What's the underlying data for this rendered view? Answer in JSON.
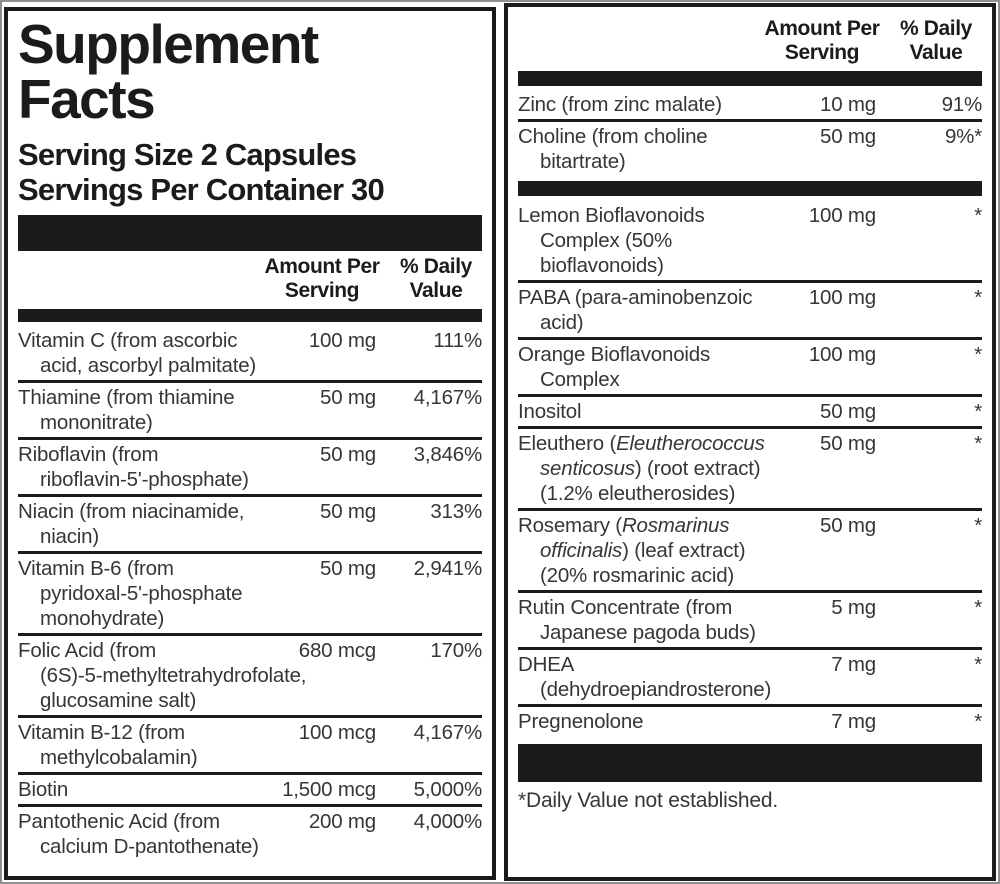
{
  "label": {
    "colors": {
      "ink": "#1c1b1a",
      "paper": "#ffffff",
      "row_text": "#383633"
    },
    "left": {
      "title": "Supplement\nFacts",
      "serving_size": "Serving Size 2 Capsules",
      "servings_per_container": "Servings Per Container 30",
      "columns": {
        "amount": "Amount Per\nServing",
        "daily_value": "% Daily\nValue"
      },
      "rows": [
        {
          "name_lines": [
            [
              "Vitamin C (from ascorbic"
            ],
            [
              "acid, ascorbyl palmitate)"
            ]
          ],
          "amount": "100 mg",
          "dv": "111%"
        },
        {
          "name_lines": [
            [
              "Thiamine (from thiamine"
            ],
            [
              "mononitrate)"
            ]
          ],
          "amount": "50 mg",
          "dv": "4,167%"
        },
        {
          "name_lines": [
            [
              "Riboflavin (from"
            ],
            [
              "riboflavin-5'-phosphate)"
            ]
          ],
          "amount": "50 mg",
          "dv": "3,846%"
        },
        {
          "name_lines": [
            [
              "Niacin (from niacinamide,"
            ],
            [
              "niacin)"
            ]
          ],
          "amount": "50 mg",
          "dv": "313%"
        },
        {
          "name_lines": [
            [
              "Vitamin B-6 (from"
            ],
            [
              "pyridoxal-5'-phosphate"
            ],
            [
              "monohydrate)"
            ]
          ],
          "amount": "50 mg",
          "dv": "2,941%"
        },
        {
          "name_lines": [
            [
              "Folic Acid (from"
            ],
            [
              "(6S)-5-methyltetrahydrofolate,"
            ],
            [
              "glucosamine salt)"
            ]
          ],
          "amount": "680 mcg",
          "dv": "170%"
        },
        {
          "name_lines": [
            [
              "Vitamin B-12 (from"
            ],
            [
              "methylcobalamin)"
            ]
          ],
          "amount": "100 mcg",
          "dv": "4,167%"
        },
        {
          "name_lines": [
            [
              "Biotin"
            ]
          ],
          "amount": "1,500 mcg",
          "dv": "5,000%"
        },
        {
          "name_lines": [
            [
              "Pantothenic Acid (from"
            ],
            [
              "calcium D-pantothenate)"
            ]
          ],
          "amount": "200 mg",
          "dv": "4,000%"
        }
      ]
    },
    "right": {
      "columns": {
        "amount": "Amount Per\nServing",
        "daily_value": "% Daily\nValue"
      },
      "rows": [
        {
          "name_lines": [
            [
              "Zinc (from zinc malate)"
            ]
          ],
          "amount": "10 mg",
          "dv": "91%"
        },
        {
          "name_lines": [
            [
              "Choline (from choline"
            ],
            [
              "bitartrate)"
            ]
          ],
          "amount": "50 mg",
          "dv": "9%*"
        },
        {
          "bar": "thin"
        },
        {
          "name_lines": [
            [
              "Lemon Bioflavonoids"
            ],
            [
              "Complex (50%"
            ],
            [
              "bioflavonoids)"
            ]
          ],
          "amount": "100 mg",
          "dv": "*"
        },
        {
          "name_lines": [
            [
              "PABA (para-aminobenzoic"
            ],
            [
              "acid)"
            ]
          ],
          "amount": "100 mg",
          "dv": "*"
        },
        {
          "name_lines": [
            [
              "Orange Bioflavonoids"
            ],
            [
              "Complex"
            ]
          ],
          "amount": "100 mg",
          "dv": "*"
        },
        {
          "name_lines": [
            [
              "Inositol"
            ]
          ],
          "amount": "50 mg",
          "dv": "*"
        },
        {
          "name_lines": [
            [
              "Eleuthero (",
              {
                "t": "Eleutherococcus",
                "i": true
              }
            ],
            [
              {
                "t": "senticosus",
                "i": true
              },
              ") (root extract)"
            ],
            [
              "(1.2% eleutherosides)"
            ]
          ],
          "amount": "50 mg",
          "dv": "*"
        },
        {
          "name_lines": [
            [
              "Rosemary (",
              {
                "t": "Rosmarinus",
                "i": true
              }
            ],
            [
              {
                "t": "officinalis",
                "i": true
              },
              ") (leaf extract)"
            ],
            [
              "(20% rosmarinic acid)"
            ]
          ],
          "amount": "50 mg",
          "dv": "*"
        },
        {
          "name_lines": [
            [
              "Rutin Concentrate (from"
            ],
            [
              "Japanese pagoda buds)"
            ]
          ],
          "amount": "5 mg",
          "dv": "*"
        },
        {
          "name_lines": [
            [
              "DHEA"
            ],
            [
              "(dehydroepiandrosterone)"
            ]
          ],
          "amount": "7 mg",
          "dv": "*"
        },
        {
          "name_lines": [
            [
              "Pregnenolone"
            ]
          ],
          "amount": "7 mg",
          "dv": "*"
        },
        {
          "bar": "tall"
        }
      ],
      "footnote": "*Daily Value not established."
    }
  }
}
